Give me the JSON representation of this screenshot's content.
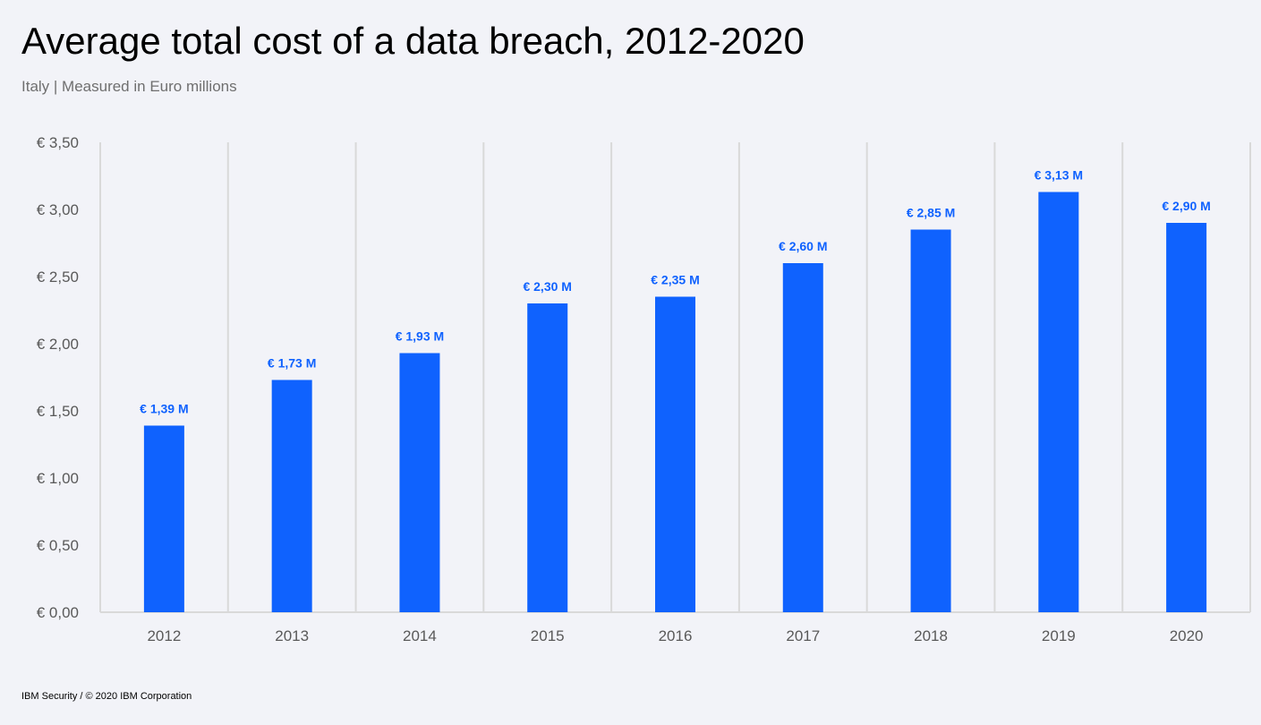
{
  "header": {
    "title": "Average total cost of a data breach, 2012-2020",
    "subtitle": "Italy | Measured in Euro millions"
  },
  "footer": {
    "text": "IBM Security / © 2020 IBM Corporation"
  },
  "colors": {
    "bar": "#0f62fe",
    "grid": "#d9d9d9",
    "background": "#f2f3f8"
  },
  "chart_data": {
    "type": "bar",
    "title": "Average total cost of a data breach, 2012-2020",
    "subtitle": "Italy | Measured in Euro millions",
    "categories": [
      "2012",
      "2013",
      "2014",
      "2015",
      "2016",
      "2017",
      "2018",
      "2019",
      "2020"
    ],
    "values": [
      1.39,
      1.73,
      1.93,
      2.3,
      2.35,
      2.6,
      2.85,
      3.13,
      2.9
    ],
    "data_labels": [
      "€ 1,39 M",
      "€ 1,73 M",
      "€ 1,93 M",
      "€ 2,30 M",
      "€ 2,35 M",
      "€ 2,60 M",
      "€ 2,85 M",
      "€ 3,13 M",
      "€ 2,90 M"
    ],
    "y_ticks": [
      0,
      0.5,
      1.0,
      1.5,
      2.0,
      2.5,
      3.0,
      3.5
    ],
    "y_tick_labels": [
      "€ 0,00",
      "€ 0,50",
      "€ 1,00",
      "€ 1,50",
      "€ 2,00",
      "€ 2,50",
      "€ 3,00",
      "€ 3,50"
    ],
    "ylim": [
      0,
      3.5
    ],
    "xlabel": "",
    "ylabel": "",
    "grid": "vertical category separators",
    "legend": "none"
  }
}
